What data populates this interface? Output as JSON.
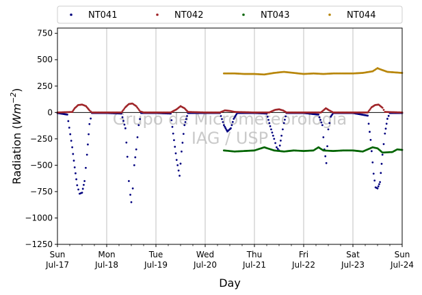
{
  "chart_data": {
    "type": "scatter",
    "xlabel": "Day",
    "ylabel_main": "Radiation (",
    "ylabel_unit_base": "Wm",
    "ylabel_unit_exp": "−2",
    "ylabel_close": ")",
    "ylim": [
      -1250,
      800
    ],
    "xlim": [
      0,
      7
    ],
    "x_ticks": [
      {
        "day": "Sun",
        "date": "Jul-17",
        "x": 0
      },
      {
        "day": "Mon",
        "date": "Jul-18",
        "x": 1
      },
      {
        "day": "Tue",
        "date": "Jul-19",
        "x": 2
      },
      {
        "day": "Wed",
        "date": "Jul-20",
        "x": 3
      },
      {
        "day": "Thu",
        "date": "Jul-21",
        "x": 4
      },
      {
        "day": "Fri",
        "date": "Jul-22",
        "x": 5
      },
      {
        "day": "Sat",
        "date": "Jul-23",
        "x": 6
      },
      {
        "day": "Sun",
        "date": "Jul-24",
        "x": 7
      }
    ],
    "y_ticks": [
      {
        "label": "750",
        "v": 750
      },
      {
        "label": "500",
        "v": 500
      },
      {
        "label": "250",
        "v": 250
      },
      {
        "label": "0",
        "v": 0
      },
      {
        "label": "−250",
        "v": -250
      },
      {
        "label": "−500",
        "v": -500
      },
      {
        "label": "−750",
        "v": -750
      },
      {
        "label": "−1000",
        "v": -1000
      },
      {
        "label": "−1250",
        "v": -1250
      }
    ],
    "grid": "x-only",
    "legend_placement": "top",
    "watermark": [
      "Grupo de Micrometeorologia",
      "IAG / USP"
    ],
    "series": [
      {
        "name": "NT041",
        "color": "#00007f",
        "points": [
          [
            0.0,
            -5
          ],
          [
            0.2,
            -20
          ],
          [
            0.3,
            -330
          ],
          [
            0.35,
            -520
          ],
          [
            0.4,
            -690
          ],
          [
            0.45,
            -770
          ],
          [
            0.5,
            -760
          ],
          [
            0.55,
            -650
          ],
          [
            0.6,
            -400
          ],
          [
            0.65,
            -110
          ],
          [
            0.7,
            -5
          ],
          [
            1.0,
            -5
          ],
          [
            1.3,
            -10
          ],
          [
            1.38,
            -150
          ],
          [
            1.42,
            -420
          ],
          [
            1.45,
            -650
          ],
          [
            1.48,
            -780
          ],
          [
            1.5,
            -850
          ],
          [
            1.53,
            -720
          ],
          [
            1.56,
            -500
          ],
          [
            1.6,
            -350
          ],
          [
            1.65,
            -120
          ],
          [
            1.7,
            -5
          ],
          [
            2.0,
            -5
          ],
          [
            2.3,
            -10
          ],
          [
            2.35,
            -200
          ],
          [
            2.42,
            -450
          ],
          [
            2.48,
            -600
          ],
          [
            2.52,
            -370
          ],
          [
            2.58,
            -120
          ],
          [
            2.65,
            -5
          ],
          [
            3.0,
            -5
          ],
          [
            3.3,
            -5
          ],
          [
            3.38,
            -120
          ],
          [
            3.45,
            -180
          ],
          [
            3.52,
            -150
          ],
          [
            3.58,
            -60
          ],
          [
            3.65,
            -5
          ],
          [
            4.0,
            -5
          ],
          [
            4.25,
            -10
          ],
          [
            4.32,
            -130
          ],
          [
            4.4,
            -250
          ],
          [
            4.45,
            -330
          ],
          [
            4.5,
            -360
          ],
          [
            4.55,
            -220
          ],
          [
            4.6,
            -100
          ],
          [
            4.65,
            -5
          ],
          [
            5.0,
            -5
          ],
          [
            5.3,
            -20
          ],
          [
            5.38,
            -120
          ],
          [
            5.42,
            -350
          ],
          [
            5.46,
            -480
          ],
          [
            5.5,
            -160
          ],
          [
            5.55,
            -40
          ],
          [
            5.6,
            -5
          ],
          [
            6.0,
            -5
          ],
          [
            6.3,
            -30
          ],
          [
            6.36,
            -260
          ],
          [
            6.42,
            -580
          ],
          [
            6.46,
            -710
          ],
          [
            6.5,
            -720
          ],
          [
            6.55,
            -660
          ],
          [
            6.6,
            -400
          ],
          [
            6.65,
            -200
          ],
          [
            6.7,
            -60
          ],
          [
            6.75,
            -5
          ],
          [
            7.0,
            -5
          ]
        ]
      },
      {
        "name": "NT042",
        "color": "#a0262a",
        "points": [
          [
            0.0,
            0
          ],
          [
            0.3,
            5
          ],
          [
            0.35,
            40
          ],
          [
            0.42,
            70
          ],
          [
            0.5,
            75
          ],
          [
            0.58,
            60
          ],
          [
            0.65,
            20
          ],
          [
            0.7,
            0
          ],
          [
            1.0,
            0
          ],
          [
            1.3,
            0
          ],
          [
            1.38,
            50
          ],
          [
            1.45,
            80
          ],
          [
            1.52,
            85
          ],
          [
            1.6,
            60
          ],
          [
            1.68,
            10
          ],
          [
            1.75,
            0
          ],
          [
            2.0,
            0
          ],
          [
            2.3,
            0
          ],
          [
            2.42,
            30
          ],
          [
            2.5,
            60
          ],
          [
            2.58,
            40
          ],
          [
            2.65,
            5
          ],
          [
            3.0,
            0
          ],
          [
            3.3,
            0
          ],
          [
            3.4,
            20
          ],
          [
            3.5,
            15
          ],
          [
            3.6,
            5
          ],
          [
            4.0,
            0
          ],
          [
            4.3,
            0
          ],
          [
            4.42,
            25
          ],
          [
            4.5,
            30
          ],
          [
            4.58,
            20
          ],
          [
            4.65,
            0
          ],
          [
            5.0,
            0
          ],
          [
            5.35,
            0
          ],
          [
            5.45,
            40
          ],
          [
            5.52,
            20
          ],
          [
            5.6,
            0
          ],
          [
            6.0,
            0
          ],
          [
            6.3,
            0
          ],
          [
            6.38,
            50
          ],
          [
            6.45,
            70
          ],
          [
            6.52,
            75
          ],
          [
            6.6,
            45
          ],
          [
            6.65,
            5
          ],
          [
            7.0,
            0
          ]
        ]
      },
      {
        "name": "NT043",
        "color": "#006400",
        "points": [
          [
            3.38,
            -360
          ],
          [
            3.6,
            -370
          ],
          [
            3.8,
            -365
          ],
          [
            4.0,
            -360
          ],
          [
            4.2,
            -330
          ],
          [
            4.4,
            -360
          ],
          [
            4.6,
            -370
          ],
          [
            4.8,
            -360
          ],
          [
            5.0,
            -365
          ],
          [
            5.2,
            -360
          ],
          [
            5.3,
            -330
          ],
          [
            5.4,
            -360
          ],
          [
            5.6,
            -365
          ],
          [
            5.8,
            -360
          ],
          [
            6.0,
            -360
          ],
          [
            6.2,
            -370
          ],
          [
            6.4,
            -330
          ],
          [
            6.5,
            -340
          ],
          [
            6.6,
            -380
          ],
          [
            6.8,
            -375
          ],
          [
            6.9,
            -350
          ],
          [
            7.0,
            -355
          ]
        ]
      },
      {
        "name": "NT044",
        "color": "#b8860b",
        "points": [
          [
            3.38,
            370
          ],
          [
            3.6,
            370
          ],
          [
            3.8,
            365
          ],
          [
            4.0,
            365
          ],
          [
            4.2,
            360
          ],
          [
            4.4,
            375
          ],
          [
            4.6,
            385
          ],
          [
            4.8,
            375
          ],
          [
            5.0,
            365
          ],
          [
            5.2,
            370
          ],
          [
            5.4,
            365
          ],
          [
            5.6,
            370
          ],
          [
            5.8,
            370
          ],
          [
            6.0,
            370
          ],
          [
            6.2,
            375
          ],
          [
            6.4,
            390
          ],
          [
            6.5,
            420
          ],
          [
            6.55,
            410
          ],
          [
            6.7,
            385
          ],
          [
            6.85,
            380
          ],
          [
            7.0,
            375
          ]
        ]
      }
    ]
  }
}
